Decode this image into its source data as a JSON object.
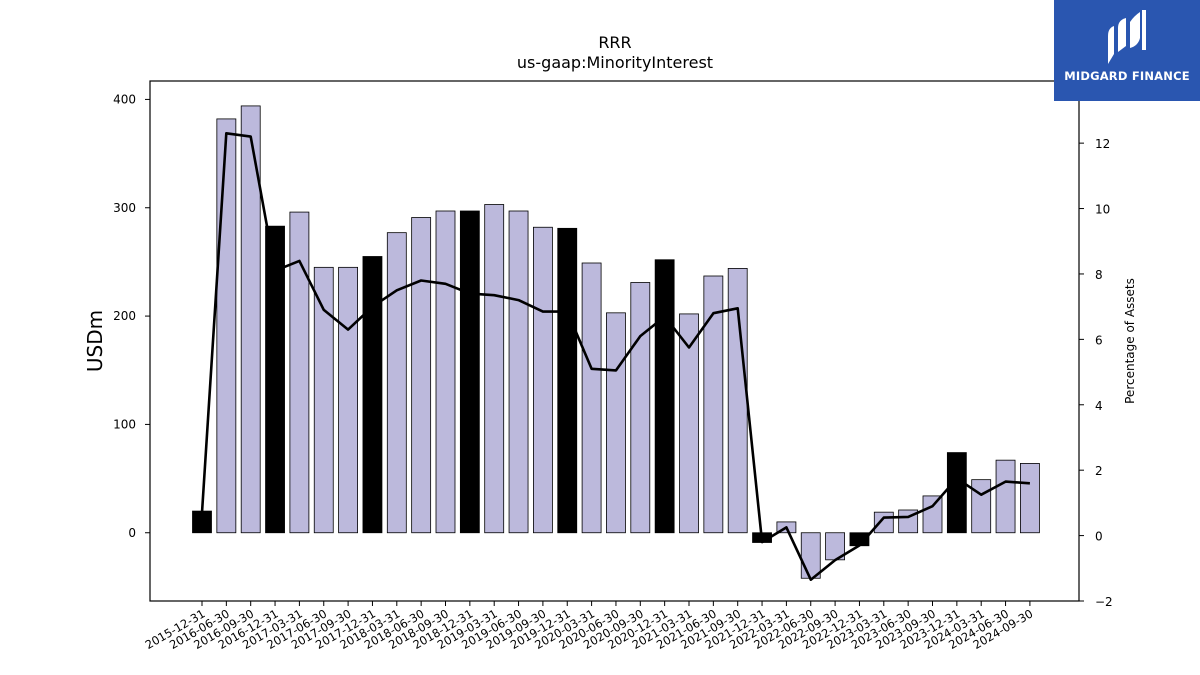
{
  "chart_data": {
    "type": "bar",
    "title": "RRR",
    "subtitle": "us-gaap:MinorityInterest",
    "ylabel": "USDm",
    "y2label": "Percentage of Assets",
    "ylim": [
      -63,
      417
    ],
    "y2lim": [
      -2,
      13.9
    ],
    "yticks": [
      0,
      100,
      200,
      300,
      400
    ],
    "y2ticks": [
      -2,
      0,
      2,
      4,
      6,
      8,
      10,
      12
    ],
    "categories": [
      "2015-12-31",
      "2016-06-30",
      "2016-09-30",
      "2016-12-31",
      "2017-03-31",
      "2017-06-30",
      "2017-09-30",
      "2017-12-31",
      "2018-03-31",
      "2018-06-30",
      "2018-09-30",
      "2018-12-31",
      "2019-03-31",
      "2019-06-30",
      "2019-09-30",
      "2019-12-31",
      "2020-03-31",
      "2020-06-30",
      "2020-09-30",
      "2020-12-31",
      "2021-03-31",
      "2021-06-30",
      "2021-09-30",
      "2021-12-31",
      "2022-03-31",
      "2022-06-30",
      "2022-09-30",
      "2022-12-31",
      "2023-03-31",
      "2023-06-30",
      "2023-09-30",
      "2023-12-31",
      "2024-03-31",
      "2024-06-30",
      "2024-09-30"
    ],
    "series": [
      {
        "kind": "bar",
        "values": [
          20,
          382,
          394,
          283,
          296,
          245,
          245,
          255,
          277,
          291,
          297,
          297,
          303,
          297,
          282,
          281,
          249,
          203,
          231,
          252,
          202,
          237,
          244,
          -9,
          10,
          -42,
          -25,
          -12,
          19,
          21,
          34,
          74,
          49,
          67,
          64
        ],
        "highlight": [
          true,
          false,
          false,
          true,
          false,
          false,
          false,
          true,
          false,
          false,
          false,
          true,
          false,
          false,
          false,
          true,
          false,
          false,
          false,
          true,
          false,
          false,
          false,
          true,
          false,
          false,
          false,
          true,
          false,
          false,
          false,
          true,
          false,
          false,
          false
        ]
      },
      {
        "kind": "line",
        "axis": "right",
        "values": [
          0.7,
          12.3,
          12.2,
          8.1,
          8.4,
          6.9,
          6.3,
          7.0,
          7.5,
          7.8,
          7.7,
          7.4,
          7.35,
          7.2,
          6.85,
          6.85,
          5.1,
          5.05,
          6.1,
          6.7,
          5.75,
          6.8,
          6.95,
          -0.2,
          0.25,
          -1.35,
          -0.75,
          -0.3,
          0.55,
          0.57,
          0.9,
          1.75,
          1.25,
          1.65,
          1.6
        ]
      }
    ],
    "colors": {
      "bar": "#bcb9dc",
      "bar_highlight": "#000000",
      "line": "#000000"
    }
  },
  "logo": {
    "text": "MIDGARD FINANCE",
    "background": "#2a56b0"
  }
}
